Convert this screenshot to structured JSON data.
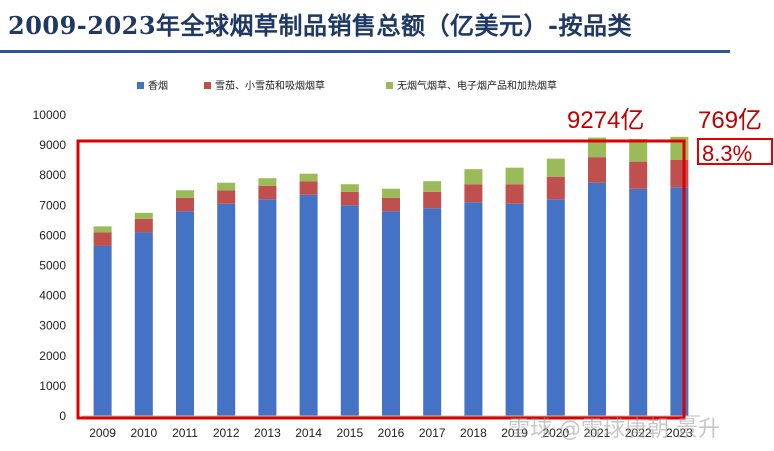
{
  "title": "2009-2023年全球烟草制品销售总额（亿美元）-按品类",
  "colors": {
    "title": "#1f3864",
    "rule": "#2f5597",
    "callout": "#c00000"
  },
  "watermark": "雪球 @雪球唐朝 景升",
  "callouts": {
    "total": "9274亿",
    "novel_value": "769亿",
    "novel_share": "8.3%"
  },
  "chart_data": {
    "type": "bar",
    "stacked": true,
    "categories": [
      "2009",
      "2010",
      "2011",
      "2012",
      "2013",
      "2014",
      "2015",
      "2016",
      "2017",
      "2018",
      "2019",
      "2020",
      "2021",
      "2022",
      "2023"
    ],
    "y_ticks": [
      "0",
      "1000",
      "2000",
      "3000",
      "4000",
      "5000",
      "6000",
      "7000",
      "8000",
      "9000",
      "10000"
    ],
    "ylim": [
      0,
      10000
    ],
    "legend_position": "top",
    "grid": false,
    "series": [
      {
        "name": "香烟",
        "color": "#4472c4",
        "values": [
          5650,
          6100,
          6800,
          7050,
          7200,
          7350,
          7000,
          6800,
          6900,
          7100,
          7050,
          7200,
          7750,
          7550,
          7600
        ]
      },
      {
        "name": "雪茄、小雪茄和吸烟烟草",
        "color": "#c0504d",
        "values": [
          450,
          450,
          450,
          450,
          450,
          450,
          450,
          450,
          550,
          600,
          650,
          750,
          850,
          900,
          905
        ]
      },
      {
        "name": "无烟气烟草、电子烟产品和加热烟草",
        "color": "#9bbb59",
        "values": [
          200,
          200,
          250,
          250,
          250,
          250,
          250,
          300,
          350,
          500,
          550,
          600,
          650,
          750,
          769
        ]
      }
    ]
  }
}
